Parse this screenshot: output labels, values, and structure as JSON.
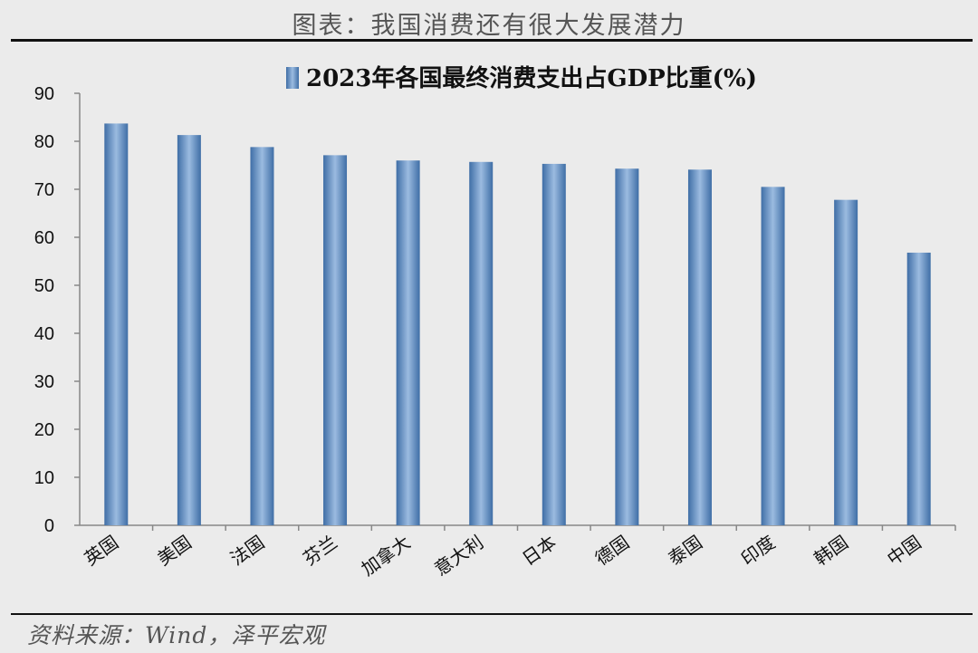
{
  "figure": {
    "title": "图表：我国消费还有很大发展潜力",
    "source": "资料来源：Wind，泽平宏观"
  },
  "chart_data": {
    "type": "bar",
    "title": "",
    "xlabel": "",
    "ylabel": "",
    "ylim": [
      0,
      90
    ],
    "yticks": [
      0,
      10,
      20,
      30,
      40,
      50,
      60,
      70,
      80,
      90
    ],
    "grid": false,
    "legend_position": "top-center",
    "categories": [
      "英国",
      "美国",
      "法国",
      "芬兰",
      "加拿大",
      "意大利",
      "日本",
      "德国",
      "泰国",
      "印度",
      "韩国",
      "中国"
    ],
    "series": [
      {
        "name": "2023年各国最终消费支出占GDP比重(%)",
        "color": "#5b86b8",
        "values": [
          83.7,
          81.3,
          78.8,
          77.1,
          76.0,
          75.7,
          75.3,
          74.3,
          74.1,
          70.5,
          67.8,
          56.8
        ]
      }
    ]
  }
}
